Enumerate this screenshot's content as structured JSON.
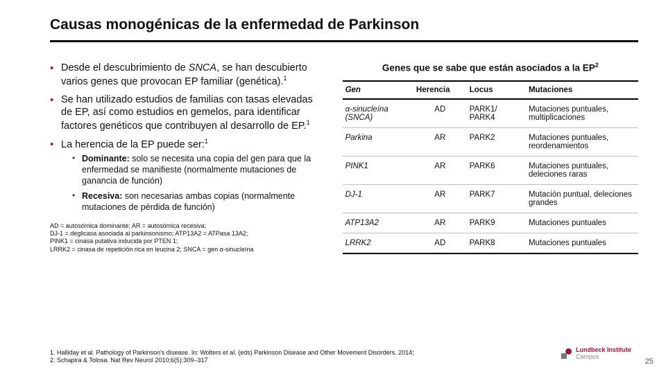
{
  "title": "Causas monogénicas de la enfermedad de Parkinson",
  "bullets": {
    "b0a": "Desde el descubrimiento de ",
    "b0i": "SNCA",
    "b0b": ", se han descubierto varios genes que provocan EP familiar (genética).",
    "b1": "Se han utilizado estudios de familias con tasas elevadas de EP, así como estudios en gemelos, para identificar factores genéticos que contribuyen al desarrollo de EP.",
    "b2": "La herencia de la EP puede ser:",
    "sub": [
      {
        "lead": "Dominante:",
        "rest": " solo se necesita una copia del gen para que la enfermedad se manifieste (normalmente mutaciones de ganancia de función)"
      },
      {
        "lead": "Recesiva:",
        "rest": " son necesarias ambas copias (normalmente mutaciones de pérdida de función)"
      }
    ]
  },
  "table": {
    "caption_a": "Genes que se sabe que están asociados a la EP",
    "headers": {
      "gene": "Gen",
      "inh": "Herencia",
      "locus": "Locus",
      "mut": "Mutaciones"
    },
    "rows": [
      {
        "gene_suffix": "α-sinucleína (SNCA)",
        "inh": "AD",
        "locus": "PARK1/\nPARK4",
        "mut": "Mutaciones puntuales, multiplicaciones"
      },
      {
        "gene_suffix": "Parkina",
        "inh": "AR",
        "locus": "PARK2",
        "mut": "Mutaciones puntuales, reordenamientos"
      },
      {
        "gene_suffix": "PINK1",
        "inh": "AR",
        "locus": "PARK6",
        "mut": "Mutaciones puntuales, deleciones raras"
      },
      {
        "gene_suffix": "DJ-1",
        "inh": "AR",
        "locus": "PARK7",
        "mut": "Mutación puntual, deleciones grandes"
      },
      {
        "gene_suffix": "ATP13A2",
        "inh": "AR",
        "locus": "PARK9",
        "mut": "Mutaciones puntuales"
      },
      {
        "gene_suffix": "LRRK2",
        "inh": "AD",
        "locus": "PARK8",
        "mut": "Mutaciones puntuales"
      }
    ]
  },
  "abbrev": "AD = autosómica dominante; AR = autosómica recesiva;\nDJ-1 = deglicasa asociada al parkinsonismo; ATP13A2 = ATPasa 13A2;\nPINK1 = cinasa putativa inducida por PTEN 1;\nLRRK2 = cinasa de repetición rica en leucina 2; SNCA = gen α-sinucleína",
  "refs": "1. Halliday et al. Pathology of Parkinson's disease. In: Wolters et al. (eds) Parkinson Disease and Other Movement Disorders. 2014;\n2. Schapira & Tolosa. Nat Rev Neurol 2010;6(5):309–317",
  "logo": {
    "line1": "Lundbeck Institute",
    "line2": "Campus"
  },
  "page": "25",
  "colors": {
    "accent": "#9d1535"
  }
}
